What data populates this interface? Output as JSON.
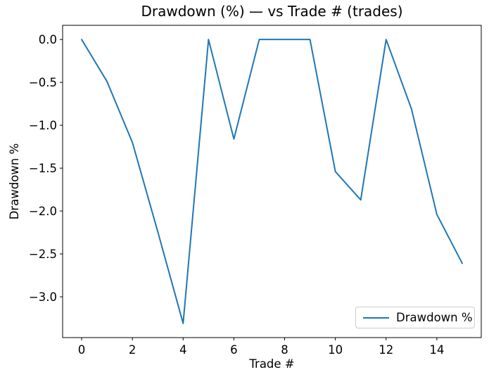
{
  "figure": {
    "background": "#ffffff",
    "axis_color": "#000000"
  },
  "chart_data": {
    "type": "line",
    "title": "Drawdown (%) — vs Trade # (trades)",
    "xlabel": "Trade #",
    "ylabel": "Drawdown %",
    "x": [
      0,
      1,
      2,
      3,
      4,
      5,
      6,
      7,
      8,
      9,
      10,
      11,
      12,
      13,
      14,
      15
    ],
    "series": [
      {
        "name": "Drawdown %",
        "color": "#1f77b4",
        "values": [
          0.0,
          -0.49,
          -1.2,
          -2.24,
          -3.31,
          0.0,
          -1.16,
          0.0,
          0.0,
          0.0,
          -1.54,
          -1.87,
          0.0,
          -0.81,
          -2.04,
          -2.61
        ]
      }
    ],
    "xlim": [
      -0.75,
      15.75
    ],
    "ylim": [
      -3.4755,
      0.1655
    ],
    "xticks": [
      0,
      2,
      4,
      6,
      8,
      10,
      12,
      14
    ],
    "xtick_labels": [
      "0",
      "2",
      "4",
      "6",
      "8",
      "10",
      "12",
      "14"
    ],
    "yticks": [
      0.0,
      -0.5,
      -1.0,
      -1.5,
      -2.0,
      -2.5,
      -3.0
    ],
    "ytick_labels": [
      "0.0",
      "−0.5",
      "−1.0",
      "−1.5",
      "−2.0",
      "−2.5",
      "−3.0"
    ],
    "grid": false,
    "legend": {
      "position": "lower right",
      "entries": [
        "Drawdown %"
      ]
    }
  }
}
